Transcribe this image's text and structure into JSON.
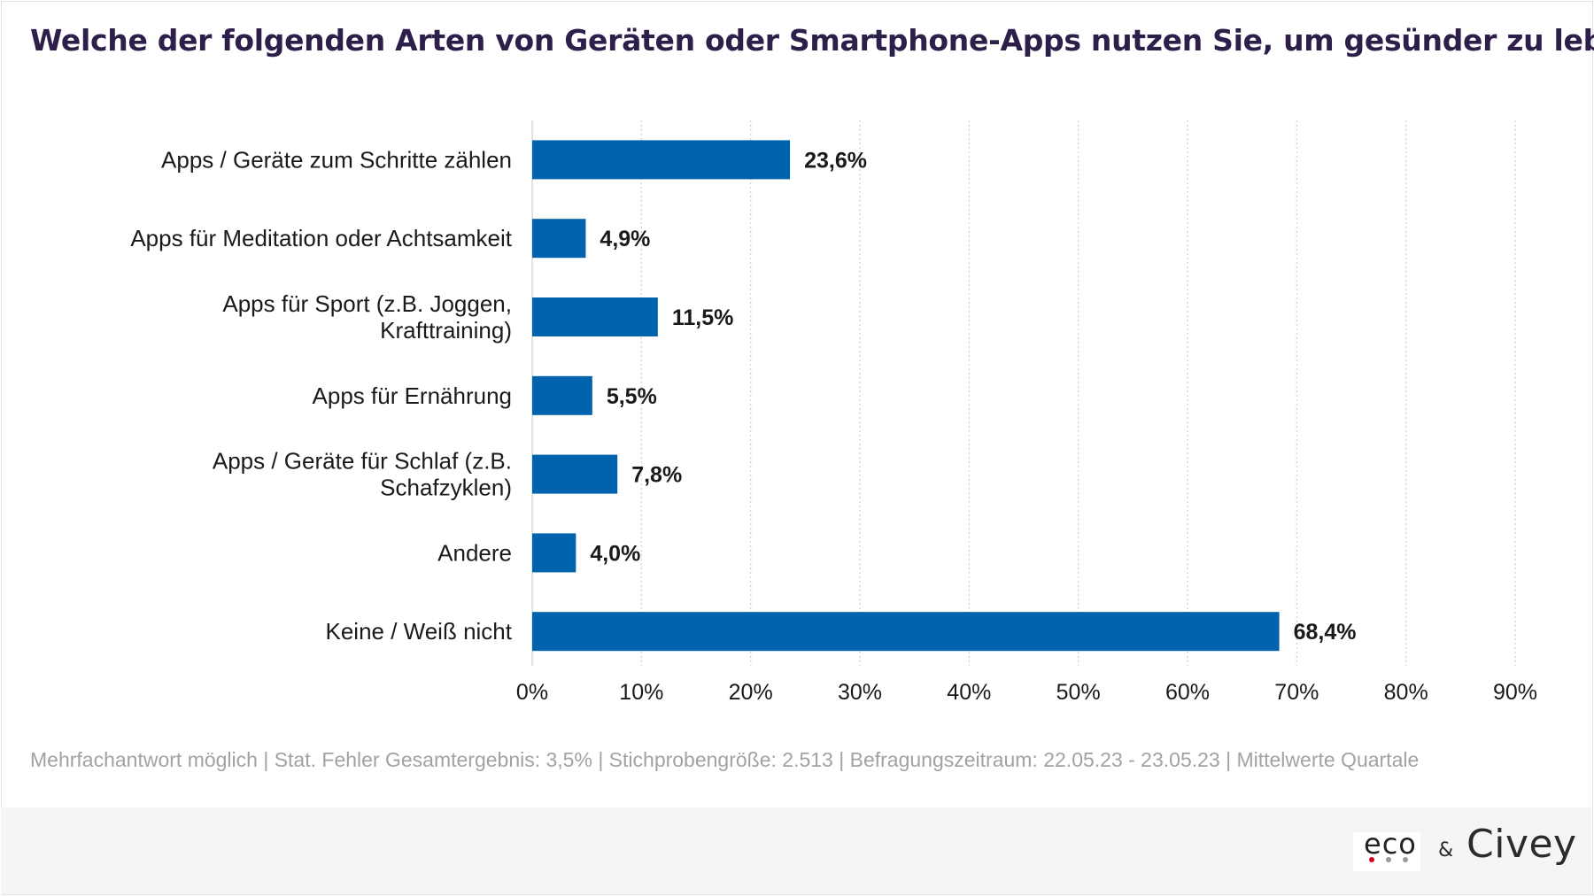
{
  "header": {
    "title": "Welche der folgenden Arten von Geräten oder Smartphone-Apps nutzen Sie, um gesünder zu leben?"
  },
  "chart_data": {
    "type": "bar",
    "orientation": "horizontal",
    "categories": [
      [
        "Apps / Geräte zum Schritte zählen"
      ],
      [
        "Apps für Meditation oder Achtsamkeit"
      ],
      [
        "Apps für Sport (z.B. Joggen,",
        "Krafttraining)"
      ],
      [
        "Apps für Ernährung"
      ],
      [
        "Apps / Geräte für Schlaf (z.B.",
        "Schafzyklen)"
      ],
      [
        "Andere"
      ],
      [
        "Keine / Weiß nicht"
      ]
    ],
    "values": [
      23.6,
      4.9,
      11.5,
      5.5,
      7.8,
      4.0,
      68.4
    ],
    "value_labels": [
      "23,6%",
      "4,9%",
      "11,5%",
      "5,5%",
      "7,8%",
      "4,0%",
      "68,4%"
    ],
    "xlim": [
      0,
      90
    ],
    "xticks": [
      0,
      10,
      20,
      30,
      40,
      50,
      60,
      70,
      80,
      90
    ],
    "xtick_labels": [
      "0%",
      "10%",
      "20%",
      "30%",
      "40%",
      "50%",
      "60%",
      "70%",
      "80%",
      "90%"
    ],
    "grid": "vertical dotted",
    "bar_color": "#0063ad"
  },
  "footnote": "Mehrfachantwort möglich | Stat. Fehler Gesamtergebnis: 3,5% | Stichprobengröße: 2.513 | Befragungszeitraum: 22.05.23 - 23.05.23 | Mittelwerte Quartale",
  "logos": {
    "left": "eco",
    "separator": "&",
    "right": "Civey",
    "eco_dot_colors": [
      "#d6001c",
      "#9a9a9a",
      "#9a9a9a"
    ]
  }
}
